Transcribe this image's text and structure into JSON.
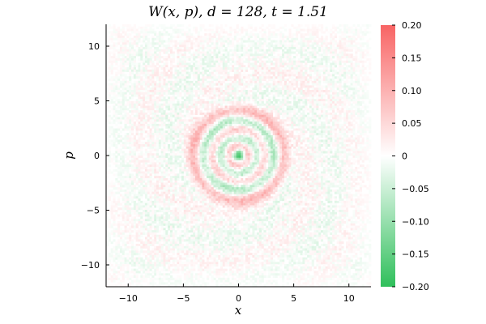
{
  "chart_data": {
    "type": "heatmap",
    "title": "W(x, p), d = 128, t = 1.51",
    "xlabel": "x",
    "ylabel": "p",
    "xlim": [
      -12,
      12
    ],
    "ylim": [
      -12,
      12
    ],
    "x_ticks": [
      -10,
      -5,
      0,
      5,
      10
    ],
    "y_ticks": [
      -10,
      -5,
      0,
      5,
      10
    ],
    "x_tick_labels": [
      "−10",
      "−5",
      "0",
      "5",
      "10"
    ],
    "y_tick_labels": [
      "−10",
      "−5",
      "0",
      "5",
      "10"
    ],
    "grid": false,
    "colorbar": {
      "range": [
        -0.2,
        0.2
      ],
      "ticks": [
        -0.2,
        -0.15,
        -0.1,
        -0.05,
        0,
        0.05,
        0.1,
        0.15,
        0.2
      ],
      "tick_labels": [
        "−0.20",
        "−0.15",
        "−0.10",
        "−0.05",
        "0",
        "0.05",
        "0.10",
        "0.15",
        "0.20"
      ],
      "colors": {
        "min": "#2fbf5b",
        "mid": "#ffffff",
        "max": "#f86464"
      }
    },
    "rings": [
      {
        "radius": 0.0,
        "value": -0.19
      },
      {
        "radius": 0.85,
        "value": 0.11
      },
      {
        "radius": 1.6,
        "value": -0.09
      },
      {
        "radius": 2.35,
        "value": 0.08
      },
      {
        "radius": 3.15,
        "value": -0.08
      },
      {
        "radius": 4.1,
        "value": 0.09
      }
    ]
  }
}
